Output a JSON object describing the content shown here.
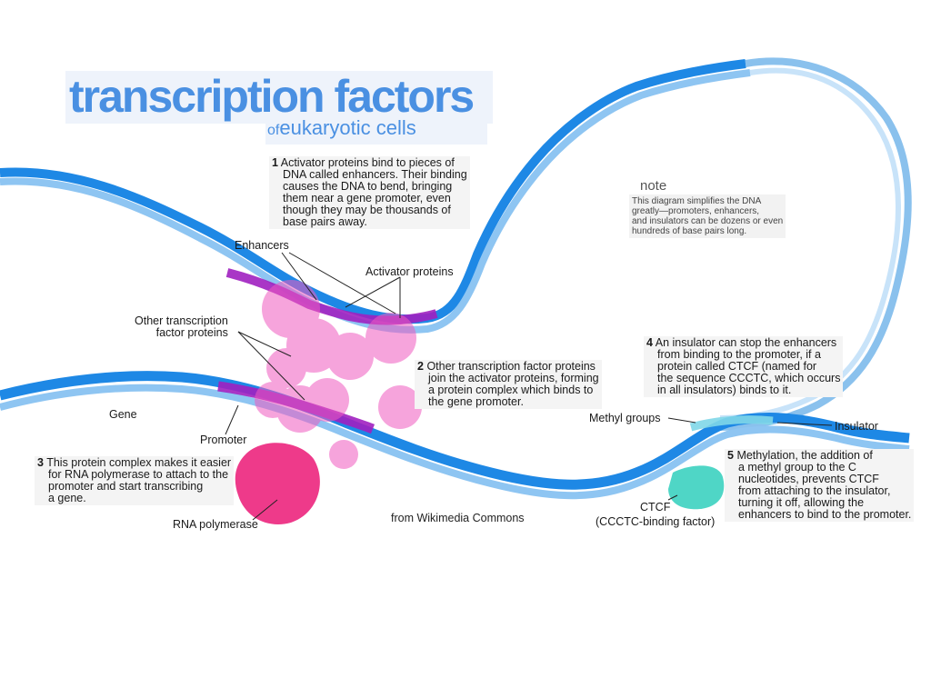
{
  "title": {
    "main": "transcription factors",
    "sub_prefix": "of",
    "sub": "eukaryotic cells"
  },
  "steps": {
    "s1": {
      "num": "1",
      "lines": [
        "Activator proteins bind to pieces of",
        "DNA called enhancers. Their binding",
        "causes the DNA to bend, bringing",
        "them near a gene promoter, even",
        "though they may be thousands of",
        "base pairs away."
      ]
    },
    "s2": {
      "num": "2",
      "lines": [
        "Other transcription factor proteins",
        "join the activator proteins, forming",
        "a protein complex which binds to",
        "the gene promoter."
      ]
    },
    "s3": {
      "num": "3",
      "lines": [
        "This protein complex makes it easier",
        "for RNA polymerase to attach to the",
        "promoter and start transcribing",
        "a gene."
      ]
    },
    "s4": {
      "num": "4",
      "lines": [
        "An insulator can stop the enhancers",
        "from binding to the promoter, if a",
        "protein called CTCF (named for",
        "the sequence CCCTC, which occurs",
        "in all insulators) binds to it."
      ]
    },
    "s5": {
      "num": "5",
      "lines": [
        "Methylation, the addition of",
        "a methyl group to the C",
        "nucleotides, prevents CTCF",
        "from attaching to the insulator,",
        "turning it off, allowing the",
        "enhancers to bind to the promoter."
      ]
    }
  },
  "note": {
    "title": "note",
    "lines": [
      "This diagram simplifies the DNA",
      "greatly—promoters, enhancers,",
      "and insulators can be dozens or even",
      "hundreds of base pairs long."
    ]
  },
  "labels": {
    "enhancers": "Enhancers",
    "activator": "Activator proteins",
    "other_tf_1": "Other transcription",
    "other_tf_2": "factor proteins",
    "gene": "Gene",
    "promoter": "Promoter",
    "rna_pol": "RNA polymerase",
    "methyl": "Methyl groups",
    "insulator": "Insulator",
    "ctcf": "CTCF",
    "ctcf_sub": "(CCCTC-binding factor)"
  },
  "credit": "from Wikimedia Commons",
  "colors": {
    "title_blue": "#4a90e2",
    "dna_blue": "#1e88e5",
    "dna_light": "#8ec5f2",
    "magenta": "#c22ec8",
    "protein_pink": "#f05ac0",
    "rna_pink": "#ee3a8a",
    "ctcf_teal": "#4fd6c6"
  }
}
